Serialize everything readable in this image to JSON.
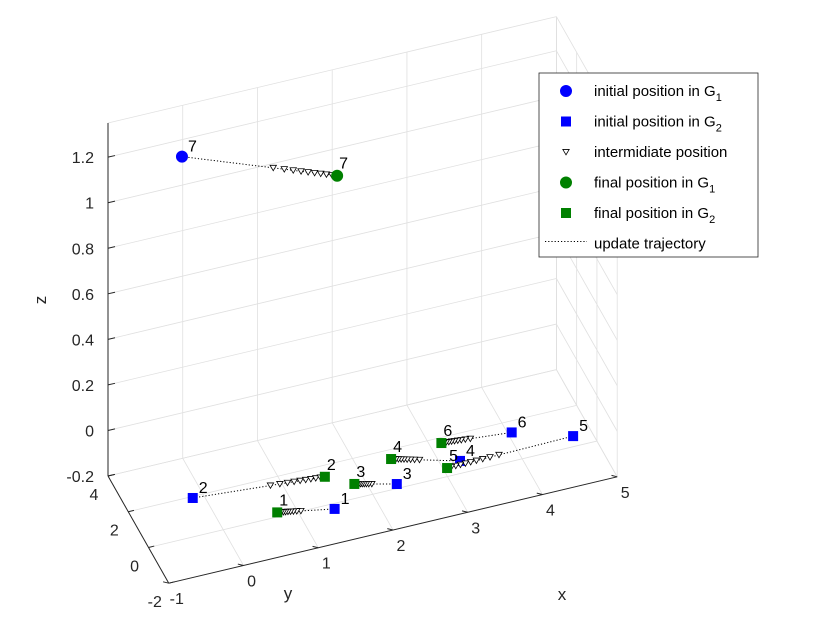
{
  "chart_data": {
    "type": "scatter3d",
    "title": "",
    "xlabel": "x",
    "ylabel": "y",
    "zlabel": "z",
    "xlim": [
      -1,
      5
    ],
    "ylim": [
      -2,
      4
    ],
    "zlim": [
      -0.2,
      1.35
    ],
    "grid": true,
    "legend_position": "top-right",
    "x_ticks": [
      "-1",
      "0",
      "1",
      "2",
      "3",
      "4",
      "5"
    ],
    "y_ticks": [
      "-2",
      "0",
      "2",
      "4"
    ],
    "z_ticks": [
      "-0.2",
      "0",
      "0.2",
      "0.4",
      "0.6",
      "0.8",
      "1",
      "1.2"
    ],
    "legend": [
      {
        "key": "g1_init",
        "text": "initial position in G",
        "sub": "1"
      },
      {
        "key": "g2_init",
        "text": "initial position in G",
        "sub": "2"
      },
      {
        "key": "inter",
        "text": "intermidiate position",
        "sub": ""
      },
      {
        "key": "g1_final",
        "text": "final position in G",
        "sub": "1"
      },
      {
        "key": "g2_final",
        "text": "final position in G",
        "sub": "2"
      },
      {
        "key": "traj",
        "text": "update trajectory",
        "sub": ""
      }
    ],
    "colors": {
      "g1": "#0000ff",
      "g2": "#008000",
      "traj": "#000000",
      "grid": "#e0e0e0",
      "axis": "#262626"
    },
    "agents": [
      {
        "id": "1",
        "group": "G2",
        "initial": [
          1.3,
          -1.4,
          -0.1
        ],
        "final": [
          0.6,
          -0.9,
          -0.1
        ]
      },
      {
        "id": "2",
        "group": "G2",
        "initial": [
          -0.3,
          0.8,
          -0.1
        ],
        "final": [
          1.4,
          0.3,
          -0.1
        ]
      },
      {
        "id": "3",
        "group": "G2",
        "initial": [
          2.2,
          -0.9,
          -0.1
        ],
        "final": [
          1.7,
          -0.4,
          -0.1
        ]
      },
      {
        "id": "4",
        "group": "G2",
        "initial": [
          3.1,
          -0.5,
          -0.1
        ],
        "final": [
          2.3,
          0.4,
          -0.1
        ]
      },
      {
        "id": "5",
        "group": "G2",
        "initial": [
          4.6,
          -0.6,
          -0.1
        ],
        "final": [
          2.9,
          -0.7,
          -0.1
        ]
      },
      {
        "id": "6",
        "group": "G2",
        "initial": [
          3.9,
          0.3,
          -0.1
        ],
        "final": [
          3.0,
          0.6,
          -0.1
        ]
      },
      {
        "id": "7",
        "group": "G1",
        "initial": [
          -0.2,
          2.6,
          1.25
        ],
        "final": [
          1.7,
          1.3,
          1.12
        ]
      }
    ]
  }
}
